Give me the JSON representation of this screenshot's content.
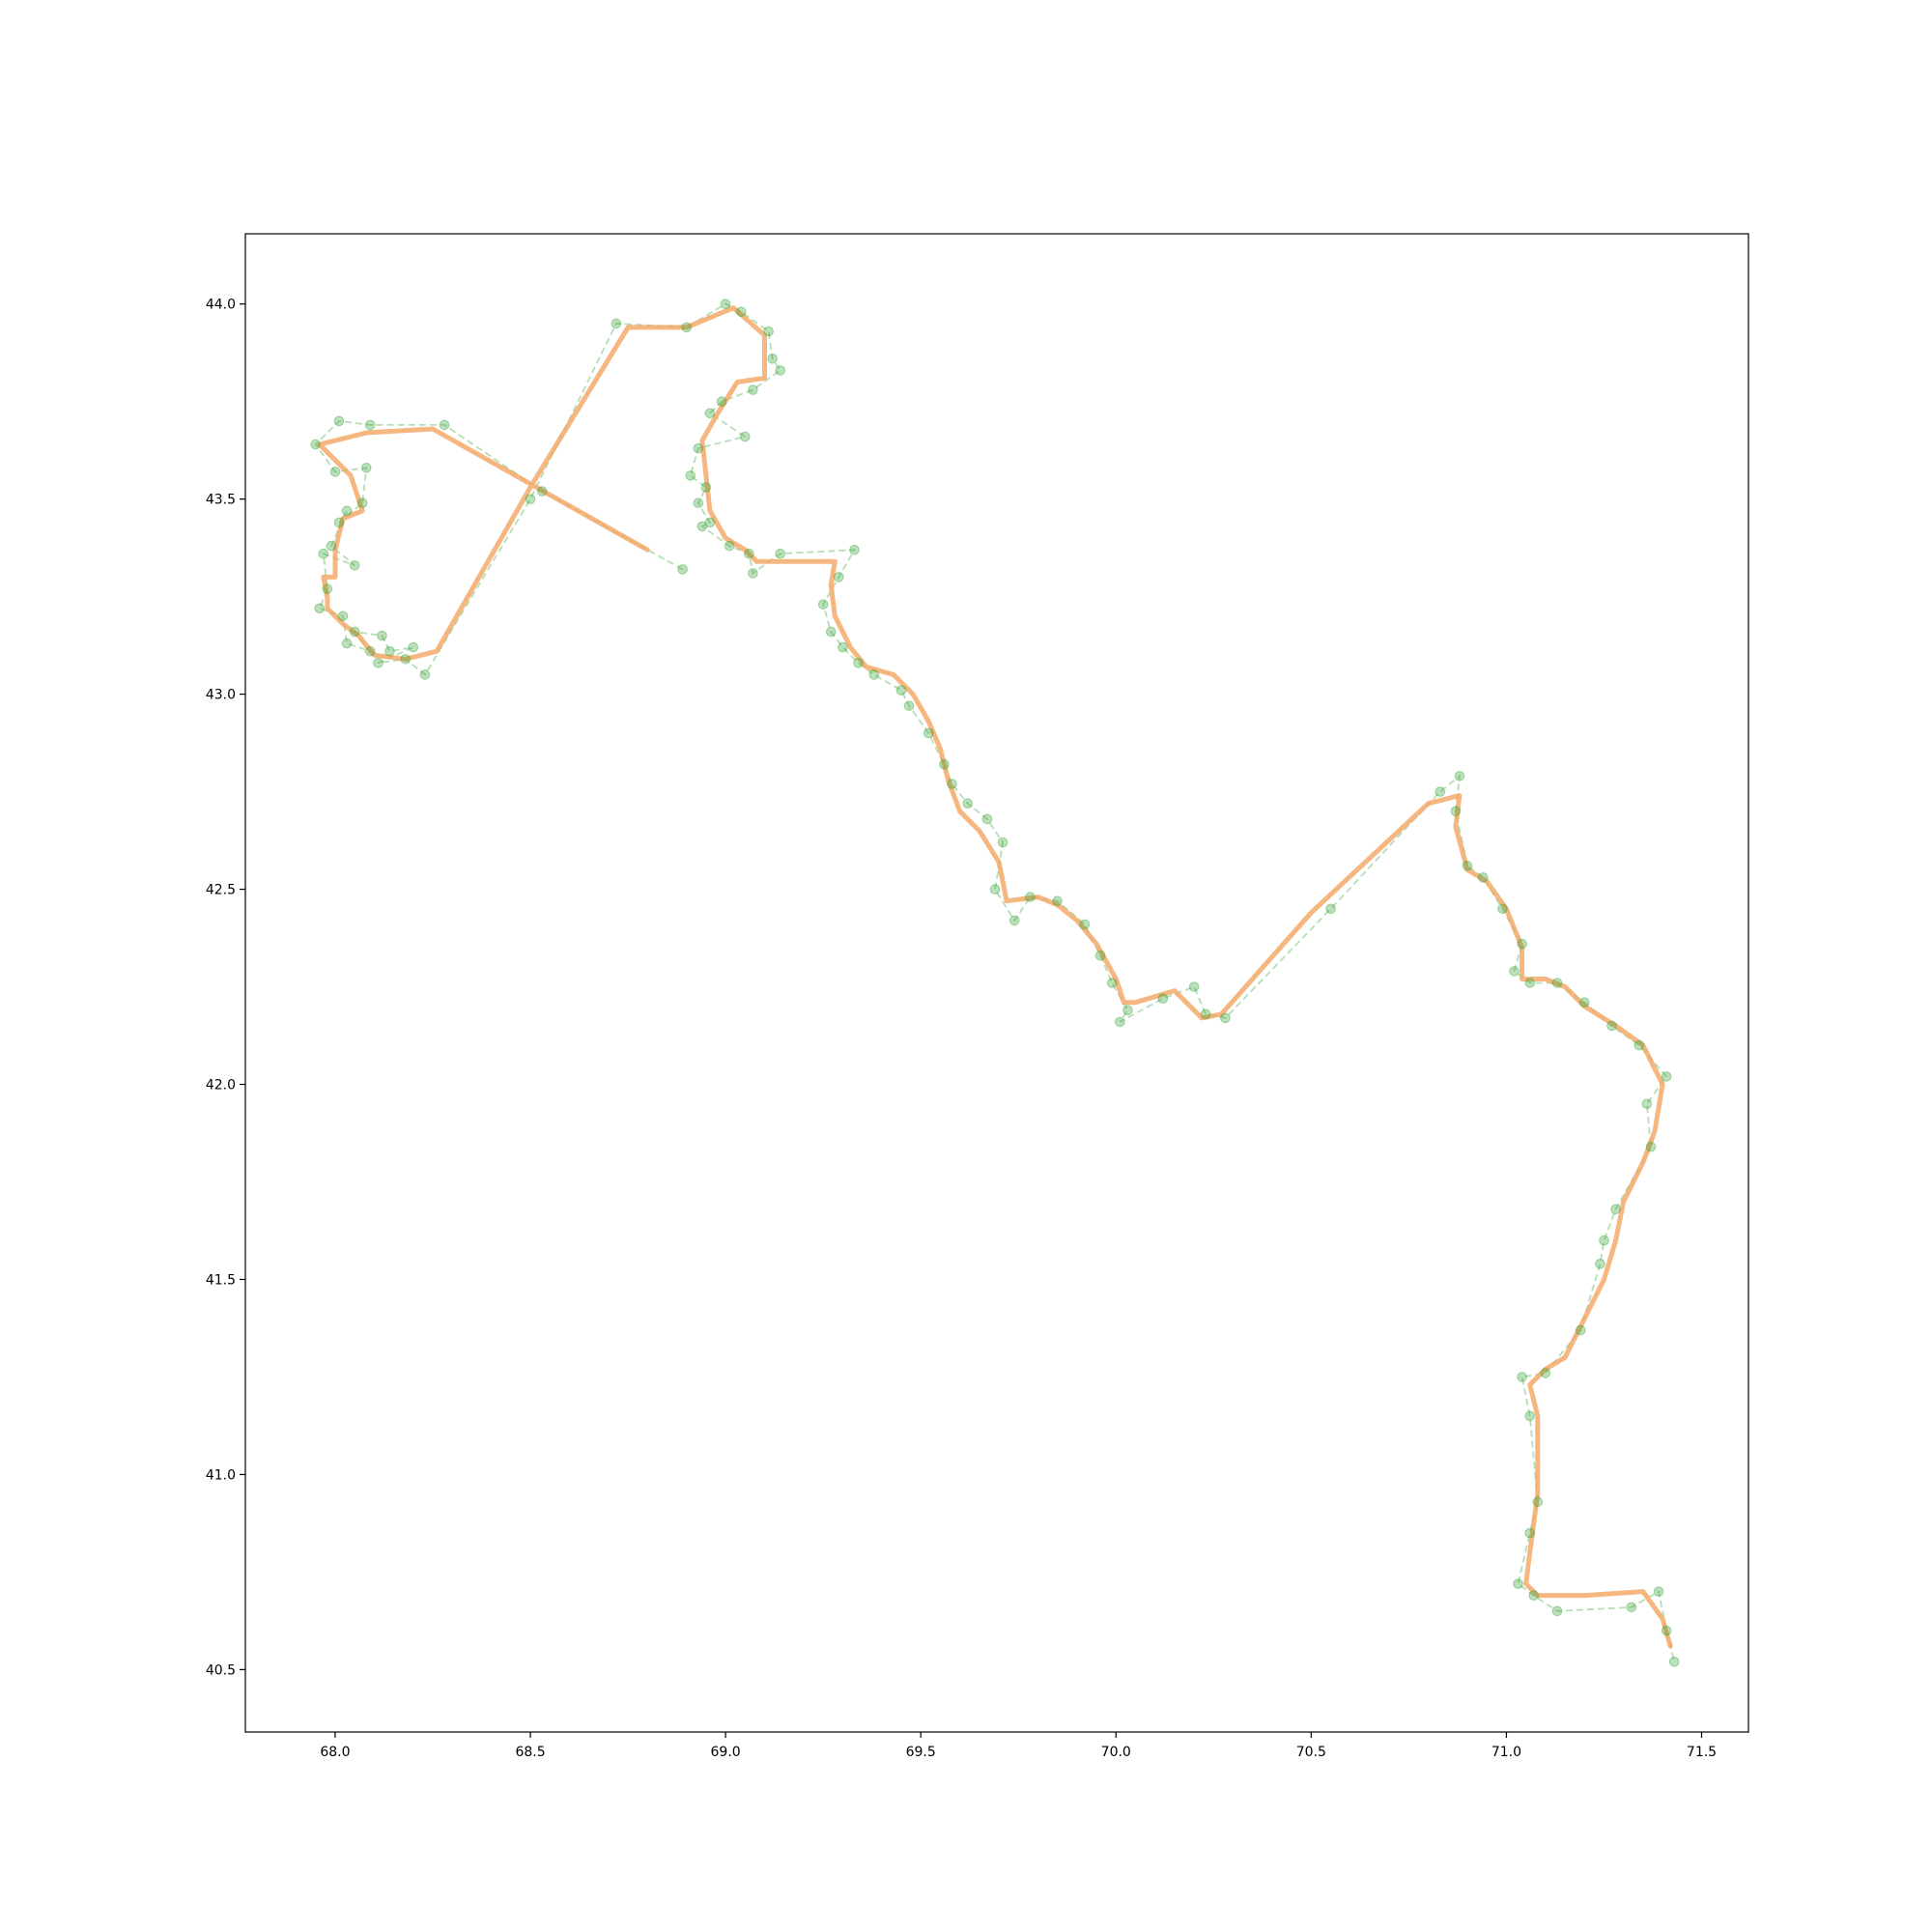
{
  "chart_data": {
    "type": "line",
    "title": "",
    "xlabel": "",
    "ylabel": "",
    "xlim": [
      67.77,
      71.62
    ],
    "ylim": [
      40.34,
      44.18
    ],
    "grid": false,
    "legend": "none",
    "x_ticks": [
      68.0,
      68.5,
      69.0,
      69.5,
      70.0,
      70.5,
      71.0,
      71.5
    ],
    "y_ticks": [
      40.5,
      41.0,
      41.5,
      42.0,
      42.5,
      43.0,
      43.5,
      44.0
    ],
    "x_tick_labels": [
      "68.0",
      "68.5",
      "69.0",
      "69.5",
      "70.0",
      "70.5",
      "71.0",
      "71.5"
    ],
    "y_tick_labels": [
      "40.5",
      "41.0",
      "41.5",
      "42.0",
      "42.5",
      "43.0",
      "43.5",
      "44.0"
    ],
    "colors": {
      "smoothed_line": "#f4a460",
      "observed": "#2ca02c",
      "axes": "#000000"
    },
    "series": [
      {
        "style": "solid-thick-orange",
        "x": [
          68.8,
          68.25,
          68.08,
          67.96,
          68.04,
          68.07,
          68.02,
          68.0,
          68.0,
          67.97,
          67.98,
          67.98,
          68.02,
          68.06,
          68.1,
          68.18,
          68.26,
          68.5,
          68.75,
          68.9,
          69.02,
          69.1,
          69.1,
          69.03,
          68.98,
          68.94,
          68.95,
          68.96,
          69.0,
          69.05,
          69.08,
          69.28,
          69.27,
          69.28,
          69.32,
          69.36,
          69.43,
          69.48,
          69.52,
          69.55,
          69.57,
          69.6,
          69.65,
          69.7,
          69.72,
          69.8,
          69.85,
          69.9,
          69.95,
          70.0,
          70.02,
          70.05,
          70.15,
          70.22,
          70.27,
          70.5,
          70.8,
          70.88,
          70.87,
          70.9,
          70.95,
          71.0,
          71.04,
          71.04,
          71.1,
          71.15,
          71.2,
          71.28,
          71.35,
          71.4,
          71.38,
          71.35,
          71.3,
          71.28,
          71.25,
          71.2,
          71.15,
          71.1,
          71.06,
          71.08,
          71.08,
          71.06,
          71.05,
          71.08,
          71.2,
          71.35,
          71.4,
          71.42
        ],
        "y": [
          43.37,
          43.68,
          43.67,
          43.64,
          43.56,
          43.47,
          43.45,
          43.37,
          43.3,
          43.3,
          43.25,
          43.22,
          43.18,
          43.15,
          43.1,
          43.09,
          43.11,
          43.53,
          43.94,
          43.94,
          43.99,
          43.92,
          43.81,
          43.8,
          43.72,
          43.65,
          43.56,
          43.47,
          43.4,
          43.37,
          43.34,
          43.34,
          43.28,
          43.2,
          43.12,
          43.07,
          43.05,
          43.0,
          42.93,
          42.86,
          42.78,
          42.7,
          42.65,
          42.57,
          42.47,
          42.48,
          42.46,
          42.42,
          42.36,
          42.27,
          42.21,
          42.21,
          42.24,
          42.17,
          42.18,
          42.44,
          42.72,
          42.74,
          42.66,
          42.55,
          42.52,
          42.45,
          42.35,
          42.27,
          42.27,
          42.25,
          42.2,
          42.15,
          42.1,
          42.0,
          41.88,
          41.8,
          41.7,
          41.6,
          41.5,
          41.4,
          41.3,
          41.27,
          41.23,
          41.15,
          40.95,
          40.8,
          40.72,
          40.69,
          40.69,
          40.7,
          40.63,
          40.56
        ]
      },
      {
        "style": "dashed-green-markers",
        "x": [
          68.89,
          68.53,
          68.28,
          68.09,
          68.01,
          67.95,
          68.0,
          68.08,
          68.07,
          68.01,
          68.03,
          67.99,
          68.05,
          67.97,
          67.98,
          67.96,
          68.02,
          68.03,
          68.09,
          68.05,
          68.12,
          68.14,
          68.2,
          68.11,
          68.18,
          68.23,
          68.5,
          68.72,
          68.9,
          69.0,
          69.04,
          69.11,
          69.12,
          69.14,
          69.07,
          68.99,
          68.96,
          69.05,
          68.93,
          68.91,
          68.95,
          68.93,
          68.96,
          68.94,
          69.01,
          69.06,
          69.07,
          69.14,
          69.33,
          69.29,
          69.25,
          69.27,
          69.3,
          69.34,
          69.38,
          69.45,
          69.47,
          69.52,
          69.56,
          69.58,
          69.62,
          69.67,
          69.71,
          69.69,
          69.74,
          69.78,
          69.85,
          69.92,
          69.96,
          69.99,
          70.03,
          70.01,
          70.12,
          70.2,
          70.23,
          70.28,
          70.55,
          70.83,
          70.88,
          70.87,
          70.9,
          70.94,
          70.99,
          71.04,
          71.02,
          71.06,
          71.13,
          71.2,
          71.27,
          71.34,
          71.41,
          71.36,
          71.37,
          71.28,
          71.25,
          71.24,
          71.19,
          71.1,
          71.04,
          71.06,
          71.08,
          71.06,
          71.03,
          71.07,
          71.13,
          71.32,
          71.39,
          71.41,
          71.43
        ],
        "y": [
          43.32,
          43.52,
          43.69,
          43.69,
          43.7,
          43.64,
          43.57,
          43.58,
          43.49,
          43.44,
          43.47,
          43.38,
          43.33,
          43.36,
          43.27,
          43.22,
          43.2,
          43.13,
          43.11,
          43.16,
          43.15,
          43.11,
          43.12,
          43.08,
          43.09,
          43.05,
          43.5,
          43.95,
          43.94,
          44.0,
          43.98,
          43.93,
          43.86,
          43.83,
          43.78,
          43.75,
          43.72,
          43.66,
          43.63,
          43.56,
          43.53,
          43.49,
          43.44,
          43.43,
          43.38,
          43.36,
          43.31,
          43.36,
          43.37,
          43.3,
          43.23,
          43.16,
          43.12,
          43.08,
          43.05,
          43.01,
          42.97,
          42.9,
          42.82,
          42.77,
          42.72,
          42.68,
          42.62,
          42.5,
          42.42,
          42.48,
          42.47,
          42.41,
          42.33,
          42.26,
          42.19,
          42.16,
          42.22,
          42.25,
          42.18,
          42.17,
          42.45,
          42.75,
          42.79,
          42.7,
          42.56,
          42.53,
          42.45,
          42.36,
          42.29,
          42.26,
          42.26,
          42.21,
          42.15,
          42.1,
          42.02,
          41.95,
          41.84,
          41.68,
          41.6,
          41.54,
          41.37,
          41.26,
          41.25,
          41.15,
          40.93,
          40.85,
          40.72,
          40.69,
          40.65,
          40.66,
          40.7,
          40.6,
          40.52
        ]
      }
    ]
  }
}
